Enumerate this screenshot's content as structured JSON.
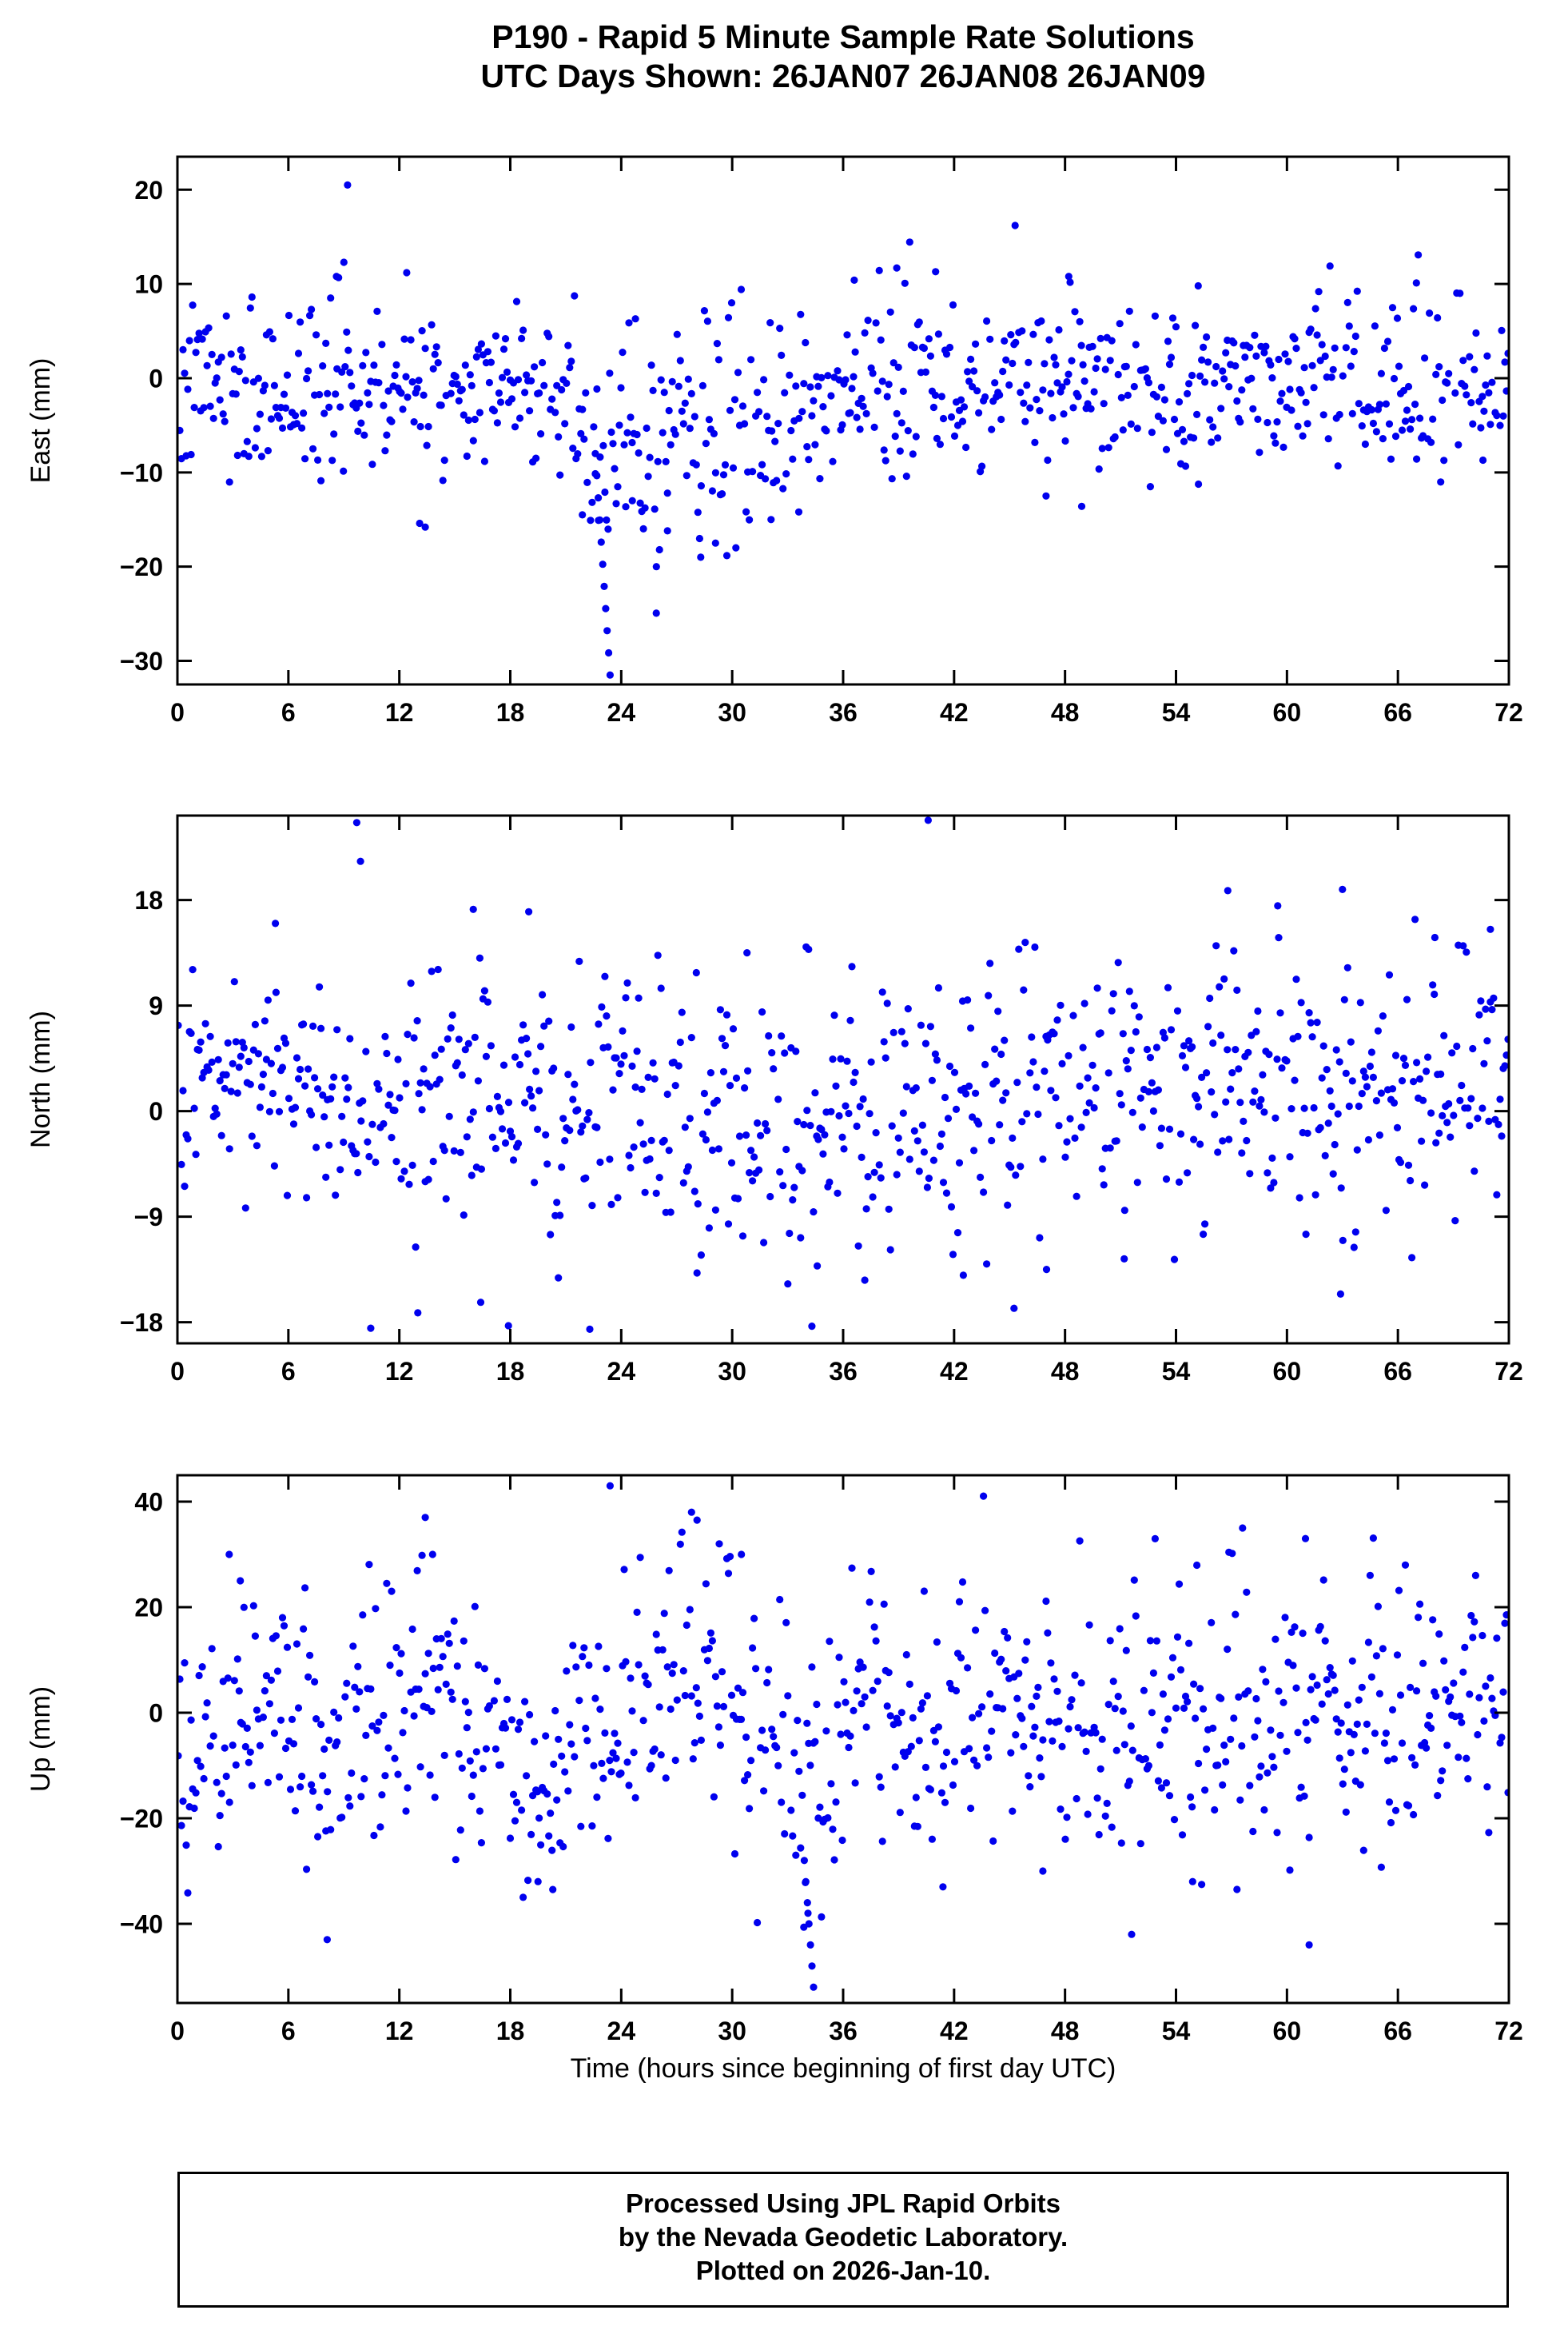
{
  "title": {
    "line1": "P190 - Rapid 5 Minute Sample Rate Solutions",
    "line2": "UTC Days Shown:  26JAN07 26JAN08 26JAN09"
  },
  "footer": {
    "lines": [
      "Processed Using JPL Rapid Orbits",
      "by the Nevada Geodetic Laboratory.",
      "Plotted on 2026-Jan-10."
    ]
  },
  "chart_data": {
    "type": "scatter",
    "station": "P190",
    "marker": {
      "shape": "circle",
      "color": "#0000EE",
      "radius_px": 4.6
    },
    "grid": false,
    "legend": "none",
    "x": {
      "label": "Time (hours since beginning of first day UTC)",
      "lim": [
        0,
        72
      ],
      "ticks": [
        0,
        6,
        12,
        18,
        24,
        30,
        36,
        42,
        48,
        54,
        60,
        66,
        72
      ]
    },
    "panels": [
      {
        "name": "east",
        "ylabel": "East (mm)",
        "ylim": [
          -32.5,
          23.5
        ],
        "yticks": [
          -30,
          -20,
          -10,
          0,
          10,
          20
        ],
        "n": 830,
        "missing": 0.05,
        "seed": 7,
        "segments": [
          [
            0,
            21.5,
            -1.2,
            4.6
          ],
          [
            21.5,
            24,
            -7,
            6
          ],
          [
            24,
            33,
            -5.5,
            6
          ],
          [
            33,
            40,
            -1.8,
            4.6
          ],
          [
            40,
            56,
            -1.2,
            4.4
          ],
          [
            56,
            72,
            -0.2,
            4.3
          ]
        ],
        "streaks": [
          {
            "x0": 22.6,
            "y0": -8,
            "x1": 23.4,
            "y1": -31.5,
            "n": 11
          }
        ],
        "outliers": [
          [
            9.2,
            20.5
          ],
          [
            9.0,
            12.3
          ],
          [
            8.6,
            10.8
          ],
          [
            12.4,
            11.2
          ],
          [
            45.3,
            16.2
          ],
          [
            41.0,
            11.3
          ],
          [
            48.2,
            10.8
          ],
          [
            36.6,
            10.4
          ],
          [
            38.9,
            11.7
          ],
          [
            67.0,
            10.1
          ],
          [
            55.2,
            9.8
          ],
          [
            13.1,
            -15.4
          ],
          [
            13.4,
            -15.8
          ],
          [
            48.9,
            -13.6
          ],
          [
            25.9,
            -20
          ],
          [
            28.3,
            -19
          ],
          [
            30.2,
            -18
          ],
          [
            26.5,
            -16.2
          ],
          [
            32.1,
            -15
          ],
          [
            29.1,
            -17.5
          ],
          [
            33.6,
            -14.2
          ],
          [
            21.9,
            -14.5
          ],
          [
            24.6,
            -13
          ],
          [
            70.6,
            -8.7
          ]
        ]
      },
      {
        "name": "north",
        "ylabel": "North (mm)",
        "ylim": [
          -19.8,
          25.2
        ],
        "yticks": [
          -18,
          -9,
          0,
          9,
          18
        ],
        "n": 830,
        "missing": 0.05,
        "seed": 13,
        "segments": [
          [
            0,
            10,
            1.5,
            4.5
          ],
          [
            10,
            20,
            1.5,
            5.5
          ],
          [
            20,
            30,
            0.5,
            5.5
          ],
          [
            30,
            38,
            -1.5,
            5.5
          ],
          [
            38,
            46,
            0,
            5.5
          ],
          [
            46,
            56,
            2,
            5.5
          ],
          [
            56,
            64,
            3,
            6
          ],
          [
            64,
            72,
            2,
            5
          ]
        ],
        "streaks": [],
        "outliers": [
          [
            9.7,
            24.6
          ],
          [
            9.9,
            21.3
          ],
          [
            40.6,
            24.8
          ],
          [
            16.0,
            17.2
          ],
          [
            19.0,
            17.0
          ],
          [
            56.8,
            18.8
          ],
          [
            59.5,
            17.5
          ],
          [
            63.0,
            18.9
          ],
          [
            5.3,
            16.0
          ],
          [
            30.8,
            13.5
          ],
          [
            34.0,
            14.0
          ],
          [
            13.0,
            -17.2
          ],
          [
            16.4,
            -16.3
          ],
          [
            17.9,
            -18.3
          ],
          [
            22.3,
            -18.6
          ],
          [
            62.9,
            -15.6
          ],
          [
            28.1,
            -13.8
          ],
          [
            34.6,
            -13.2
          ],
          [
            42.5,
            -14.0
          ],
          [
            47.0,
            -13.5
          ],
          [
            51.2,
            -12.6
          ],
          [
            68.0,
            14.8
          ],
          [
            71.0,
            15.5
          ]
        ]
      },
      {
        "name": "up",
        "ylabel": "Up (mm)",
        "ylim": [
          -55,
          45
        ],
        "yticks": [
          -40,
          -20,
          0,
          20,
          40
        ],
        "n": 830,
        "missing": 0.05,
        "seed": 21,
        "segments": [
          [
            0,
            3,
            -5,
            12
          ],
          [
            3,
            6,
            5,
            12
          ],
          [
            6,
            9,
            -8,
            12
          ],
          [
            9,
            12,
            -2,
            12
          ],
          [
            12,
            15,
            6,
            13
          ],
          [
            15,
            18,
            -2,
            12
          ],
          [
            18,
            21,
            -12,
            10
          ],
          [
            21,
            24,
            -4,
            12
          ],
          [
            24,
            27,
            5,
            12
          ],
          [
            27,
            30,
            10,
            12
          ],
          [
            30,
            33,
            -3,
            13
          ],
          [
            33,
            36,
            -10,
            13
          ],
          [
            36,
            39,
            2,
            12
          ],
          [
            39,
            42,
            -4,
            12
          ],
          [
            42,
            45,
            2,
            12
          ],
          [
            45,
            48,
            -2,
            12
          ],
          [
            48,
            51,
            -6,
            12
          ],
          [
            51,
            54,
            -4,
            12
          ],
          [
            54,
            57,
            0,
            12
          ],
          [
            57,
            60,
            -2,
            13
          ],
          [
            60,
            63,
            0,
            13
          ],
          [
            63,
            66,
            -4,
            12
          ],
          [
            66,
            69,
            0,
            11
          ],
          [
            69,
            72,
            2,
            11
          ]
        ],
        "streaks": [
          {
            "x0": 33.9,
            "y0": -28,
            "x1": 34.4,
            "y1": -52,
            "n": 7
          }
        ],
        "outliers": [
          [
            23.4,
            43
          ],
          [
            27.8,
            38
          ],
          [
            28.1,
            36.5
          ],
          [
            13.4,
            37
          ],
          [
            13.8,
            30
          ],
          [
            2.8,
            30
          ],
          [
            3.4,
            25
          ],
          [
            57.6,
            35
          ],
          [
            61.0,
            33
          ],
          [
            8.1,
            -43
          ],
          [
            51.6,
            -42
          ],
          [
            61.2,
            -44
          ],
          [
            41.4,
            -33
          ],
          [
            19.5,
            -32
          ],
          [
            20.3,
            -33.5
          ],
          [
            46.8,
            -30
          ],
          [
            54.9,
            -32
          ],
          [
            70.2,
            26
          ],
          [
            34.1,
            -38
          ],
          [
            30.5,
            30
          ],
          [
            29.3,
            32
          ]
        ]
      }
    ]
  }
}
